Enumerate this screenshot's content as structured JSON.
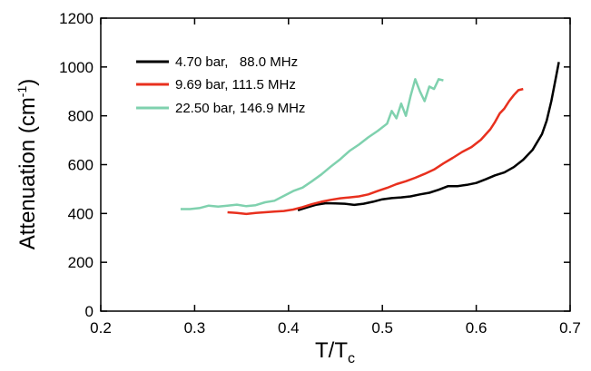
{
  "chart_data": {
    "type": "line",
    "title": "",
    "xlabel": "T/T",
    "xlabel_sub": "c",
    "ylabel": "Attenuation (cm",
    "ylabel_sup": "-1",
    "ylabel_close": ")",
    "xlim": [
      0.2,
      0.7
    ],
    "ylim": [
      0,
      1200
    ],
    "xticks": [
      0.2,
      0.3,
      0.4,
      0.5,
      0.6,
      0.7
    ],
    "xtick_labels": [
      "0.2",
      "0.3",
      "0.4",
      "0.5",
      "0.6",
      "0.7"
    ],
    "yticks": [
      0,
      200,
      400,
      600,
      800,
      1000,
      1200
    ],
    "ytick_labels": [
      "0",
      "200",
      "400",
      "600",
      "800",
      "1000",
      "1200"
    ],
    "grid": false,
    "legend_position": "top-left",
    "series": [
      {
        "name": "4.70 bar,   88.0 MHz",
        "color": "#000000",
        "x": [
          0.41,
          0.42,
          0.43,
          0.44,
          0.45,
          0.46,
          0.47,
          0.48,
          0.49,
          0.5,
          0.51,
          0.52,
          0.53,
          0.54,
          0.55,
          0.56,
          0.57,
          0.58,
          0.59,
          0.6,
          0.61,
          0.62,
          0.63,
          0.64,
          0.65,
          0.66,
          0.67,
          0.675,
          0.68,
          0.685,
          0.688
        ],
        "y": [
          413,
          425,
          436,
          442,
          441,
          440,
          435,
          440,
          448,
          458,
          463,
          466,
          470,
          478,
          485,
          497,
          512,
          512,
          517,
          525,
          540,
          556,
          568,
          590,
          620,
          660,
          725,
          780,
          860,
          960,
          1020
        ]
      },
      {
        "name": "9.69 bar, 111.5 MHz",
        "color": "#e8301e",
        "x": [
          0.335,
          0.345,
          0.355,
          0.365,
          0.375,
          0.385,
          0.395,
          0.405,
          0.415,
          0.425,
          0.435,
          0.445,
          0.455,
          0.465,
          0.475,
          0.485,
          0.495,
          0.505,
          0.515,
          0.525,
          0.535,
          0.545,
          0.555,
          0.565,
          0.575,
          0.585,
          0.595,
          0.605,
          0.615,
          0.62,
          0.625,
          0.63,
          0.635,
          0.64,
          0.645,
          0.65
        ],
        "y": [
          405,
          402,
          398,
          402,
          405,
          408,
          410,
          416,
          426,
          438,
          448,
          456,
          462,
          466,
          470,
          478,
          492,
          505,
          520,
          532,
          546,
          562,
          580,
          605,
          628,
          652,
          672,
          702,
          745,
          775,
          810,
          830,
          860,
          885,
          905,
          910
        ]
      },
      {
        "name": "22.50 bar, 146.9 MHz",
        "color": "#7fd1ae",
        "x": [
          0.285,
          0.295,
          0.305,
          0.315,
          0.325,
          0.335,
          0.345,
          0.355,
          0.365,
          0.375,
          0.385,
          0.395,
          0.405,
          0.415,
          0.425,
          0.435,
          0.445,
          0.455,
          0.465,
          0.475,
          0.485,
          0.495,
          0.505,
          0.51,
          0.515,
          0.52,
          0.525,
          0.53,
          0.535,
          0.54,
          0.545,
          0.55,
          0.555,
          0.56,
          0.565
        ],
        "y": [
          418,
          418,
          422,
          432,
          428,
          432,
          436,
          430,
          434,
          446,
          452,
          472,
          492,
          506,
          532,
          560,
          592,
          622,
          656,
          682,
          712,
          738,
          768,
          820,
          790,
          850,
          800,
          880,
          950,
          900,
          860,
          920,
          910,
          950,
          945
        ]
      }
    ]
  }
}
